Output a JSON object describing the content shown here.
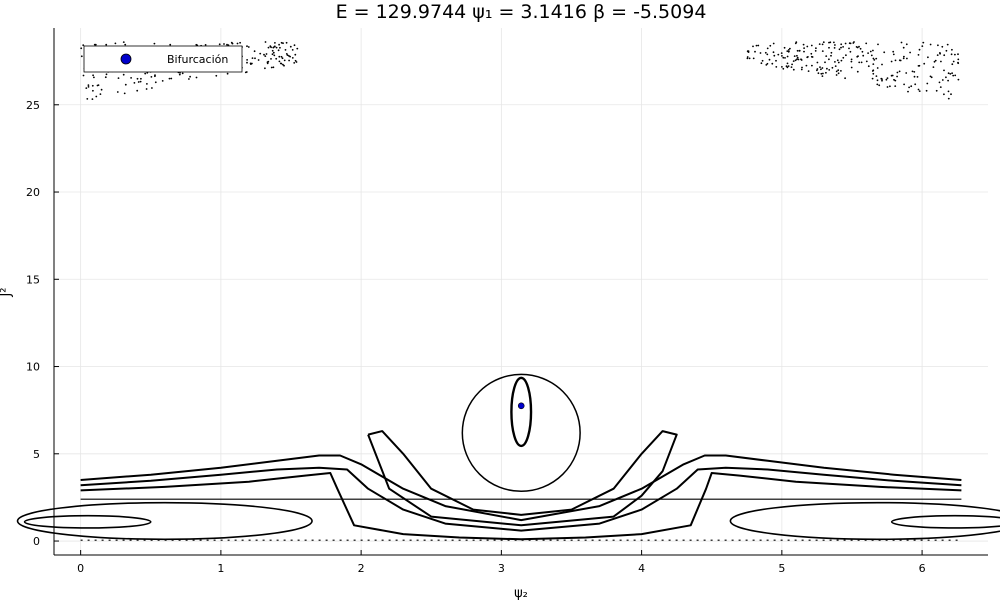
{
  "chart_data": {
    "type": "scatter",
    "title": "E = 129.9744  ψ₁ = 3.1416  β = -5.5094",
    "xlabel": "ψ₂",
    "ylabel": "J²",
    "xlim": [
      -0.19,
      6.47
    ],
    "ylim": [
      -0.8,
      29.4
    ],
    "x_ticks": [
      0,
      1,
      2,
      3,
      4,
      5,
      6
    ],
    "y_ticks": [
      0,
      5,
      10,
      15,
      20,
      25
    ],
    "grid": true,
    "legend": {
      "position": "top-left",
      "entries": [
        {
          "name": "Bifurcación",
          "color": "#0000cc"
        }
      ]
    },
    "bifurcation_point": {
      "x": 3.1416,
      "y": 7.75
    },
    "orbit_color": "#000000",
    "orbits": {
      "center_islands": [
        {
          "cx": 3.1416,
          "cy": 7.4,
          "rx": 0.07,
          "ry": 1.95
        },
        {
          "cx": 3.1416,
          "cy": 6.2,
          "rx": 0.42,
          "ry": 3.35
        }
      ],
      "side_islands_left": [
        {
          "cx": 0.05,
          "cy": 1.1,
          "rx": 0.45,
          "ry": 0.35
        },
        {
          "cx": 0.6,
          "cy": 1.15,
          "rx": 1.05,
          "ry": 1.05
        }
      ],
      "separatrix_like_curves": [
        {
          "x": [
            0.0,
            0.5,
            1.0,
            1.4,
            1.7,
            1.85,
            2.0,
            2.3,
            2.6,
            3.1416,
            3.7,
            4.0,
            4.3,
            4.45,
            4.6,
            4.9,
            5.3,
            5.8,
            6.28
          ],
          "y": [
            3.5,
            3.8,
            4.2,
            4.6,
            4.9,
            4.9,
            4.4,
            3.0,
            2.0,
            1.2,
            2.0,
            3.0,
            4.4,
            4.9,
            4.9,
            4.6,
            4.2,
            3.8,
            3.5
          ]
        },
        {
          "x": [
            0.0,
            0.5,
            1.0,
            1.4,
            1.7,
            1.9,
            2.05,
            2.3,
            2.6,
            3.1416,
            3.7,
            4.0,
            4.25,
            4.4,
            4.6,
            4.9,
            5.3,
            5.8,
            6.28
          ],
          "y": [
            3.2,
            3.45,
            3.8,
            4.1,
            4.2,
            4.1,
            3.0,
            1.8,
            1.0,
            0.6,
            1.0,
            1.8,
            3.0,
            4.1,
            4.2,
            4.1,
            3.8,
            3.45,
            3.2
          ]
        },
        {
          "x": [
            0.0,
            0.6,
            1.2,
            1.6,
            1.78,
            1.83,
            1.95,
            2.3,
            2.7,
            3.1416,
            3.6,
            4.0,
            4.35,
            4.46,
            4.5,
            4.7,
            5.1,
            5.7,
            6.28
          ],
          "y": [
            2.9,
            3.1,
            3.4,
            3.75,
            3.9,
            3.0,
            0.9,
            0.4,
            0.2,
            0.1,
            0.2,
            0.4,
            0.9,
            3.0,
            3.9,
            3.75,
            3.4,
            3.1,
            2.9
          ]
        },
        {
          "x": [
            2.05,
            2.15,
            2.3,
            2.5,
            2.8,
            3.1416,
            3.5,
            3.8,
            4.0,
            4.15,
            4.25,
            4.15,
            4.0,
            3.8,
            3.1416,
            2.5,
            2.2,
            2.05
          ],
          "y": [
            6.1,
            6.3,
            5.0,
            3.0,
            1.8,
            1.5,
            1.8,
            3.0,
            5.0,
            6.3,
            6.1,
            4.0,
            2.6,
            1.4,
            0.9,
            1.4,
            3.0,
            6.1
          ]
        },
        {
          "x": [
            0.0,
            1.0,
            2.0,
            3.1416,
            4.28,
            5.28,
            6.28
          ],
          "y": [
            2.4,
            2.4,
            2.4,
            2.4,
            2.4,
            2.4,
            2.4
          ]
        },
        {
          "x": [
            0.0,
            1.0,
            2.0,
            3.1416,
            4.28,
            5.28,
            6.28
          ],
          "y": [
            0.05,
            0.05,
            0.05,
            0.05,
            0.05,
            0.05,
            0.05
          ]
        }
      ],
      "chaotic_regions": [
        {
          "x_range": [
            0.0,
            1.55
          ],
          "y_range": [
            25.1,
            28.6
          ]
        },
        {
          "x_range": [
            4.75,
            6.28
          ],
          "y_range": [
            25.2,
            28.6
          ]
        }
      ]
    }
  }
}
